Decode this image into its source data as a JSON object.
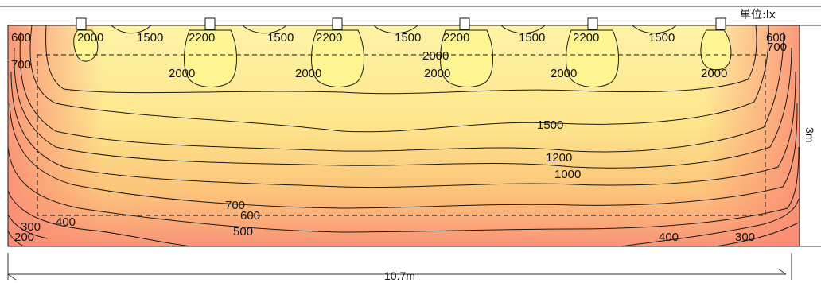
{
  "unit_label": "単位:lx",
  "width_label": "10.7m",
  "height_label": "3m",
  "colors": {
    "top": "#fff0a0",
    "mid": "#fdd074",
    "bottom": "#fa8a74",
    "hotspot": "#fff592",
    "contour": "#1a1a1a"
  },
  "contour_levels": {
    "top_row": [
      "600",
      "2000",
      "1500",
      "2200",
      "1500",
      "2200",
      "1500",
      "2200",
      "1500",
      "2200",
      "1500",
      "600"
    ],
    "right_edge": "700",
    "left_edge": "700",
    "lower_2000": [
      "2000",
      "2000",
      "2000",
      "2000",
      "2000"
    ],
    "center_2000": "2000",
    "mid_1500": "1500",
    "mid_1200": "1200",
    "mid_1000": "1000",
    "low_700": "700",
    "low_600": "600",
    "low_500": "500",
    "low_left_400": "400",
    "low_left_300": "300",
    "low_left_200": "200",
    "low_right_400": "400",
    "low_right_300": "300"
  }
}
